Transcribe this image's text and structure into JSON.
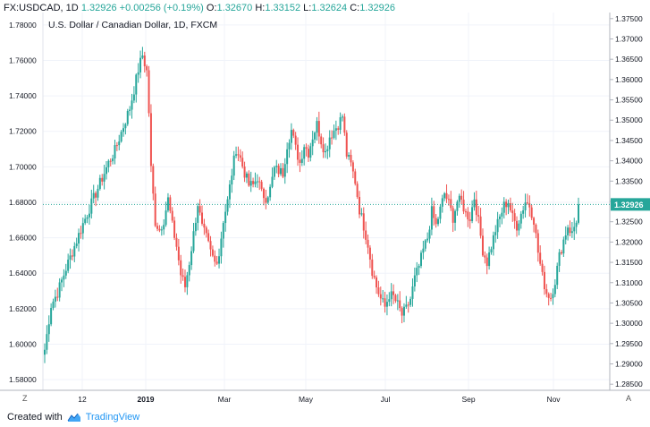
{
  "header": {
    "symbol": "FX:USDCAD, 1D",
    "last": "1.32926",
    "change": "+0.00256 (+0.19%)",
    "o_label": "O:",
    "o_value": "1.32670",
    "h_label": "H:",
    "h_value": "1.33152",
    "l_label": "L:",
    "l_value": "1.32624",
    "c_label": "C:",
    "c_value": "1.32926"
  },
  "subtitle": "U.S. Dollar / Canadian Dollar, 1D, FXCM",
  "footer": {
    "prefix": "Created with",
    "brand": "TradingView"
  },
  "corners": {
    "left": "Z",
    "right": "A"
  },
  "colors": {
    "up": "#26a69a",
    "down": "#ef5350",
    "grid": "#f0f3fa",
    "price_line": "#26a69a",
    "price_tag": "#26a69a"
  },
  "chart_data": {
    "type": "candlestick",
    "title": "U.S. Dollar / Canadian Dollar, 1D, FXCM",
    "last_price": 1.32926,
    "last_price_label": "1.32926",
    "x_tick_labels": [
      "12",
      "2019",
      "Mar",
      "May",
      "Jul",
      "Sep",
      "Nov"
    ],
    "left_axis": {
      "ticks": [
        1.58,
        1.6,
        1.62,
        1.64,
        1.66,
        1.68,
        1.7,
        1.72,
        1.74,
        1.76,
        1.78
      ],
      "tick_labels": [
        "1.58000",
        "1.60000",
        "1.62000",
        "1.64000",
        "1.66000",
        "1.68000",
        "1.70000",
        "1.72000",
        "1.74000",
        "1.76000",
        "1.78000"
      ],
      "range": [
        1.574,
        1.787
      ]
    },
    "right_axis": {
      "ticks": [
        1.285,
        1.29,
        1.295,
        1.3,
        1.305,
        1.31,
        1.315,
        1.32,
        1.325,
        1.33,
        1.335,
        1.34,
        1.345,
        1.35,
        1.355,
        1.36,
        1.365,
        1.37,
        1.375
      ],
      "tick_labels": [
        "1.28500",
        "1.29000",
        "1.29500",
        "1.30000",
        "1.30500",
        "1.31000",
        "1.31500",
        "1.32000",
        "1.32500",
        "1.33000",
        "1.33500",
        "1.34000",
        "1.34500",
        "1.35000",
        "1.35500",
        "1.36000",
        "1.36500",
        "1.37000",
        "1.37500"
      ],
      "range": [
        1.2835,
        1.3765
      ]
    },
    "price_anchors": [
      [
        0,
        1.2935
      ],
      [
        3,
        1.3045
      ],
      [
        6,
        1.3075
      ],
      [
        10,
        1.3135
      ],
      [
        14,
        1.319
      ],
      [
        18,
        1.3245
      ],
      [
        22,
        1.3295
      ],
      [
        26,
        1.3345
      ],
      [
        30,
        1.3395
      ],
      [
        33,
        1.3425
      ],
      [
        36,
        1.347
      ],
      [
        40,
        1.353
      ],
      [
        42,
        1.3575
      ],
      [
        44,
        1.3625
      ],
      [
        46,
        1.366
      ],
      [
        48,
        1.362
      ],
      [
        49,
        1.352
      ],
      [
        50,
        1.338
      ],
      [
        52,
        1.325
      ],
      [
        54,
        1.323
      ],
      [
        56,
        1.3255
      ],
      [
        58,
        1.3305
      ],
      [
        60,
        1.324
      ],
      [
        62,
        1.319
      ],
      [
        64,
        1.312
      ],
      [
        66,
        1.309
      ],
      [
        68,
        1.315
      ],
      [
        70,
        1.322
      ],
      [
        72,
        1.3295
      ],
      [
        74,
        1.3235
      ],
      [
        76,
        1.321
      ],
      [
        78,
        1.3175
      ],
      [
        80,
        1.315
      ],
      [
        82,
        1.317
      ],
      [
        84,
        1.3255
      ],
      [
        86,
        1.33
      ],
      [
        88,
        1.337
      ],
      [
        90,
        1.343
      ],
      [
        92,
        1.3405
      ],
      [
        94,
        1.337
      ],
      [
        96,
        1.334
      ],
      [
        98,
        1.334
      ],
      [
        100,
        1.336
      ],
      [
        102,
        1.332
      ],
      [
        104,
        1.331
      ],
      [
        106,
        1.333
      ],
      [
        108,
        1.338
      ],
      [
        112,
        1.337
      ],
      [
        114,
        1.344
      ],
      [
        116,
        1.3475
      ],
      [
        118,
        1.343
      ],
      [
        120,
        1.3395
      ],
      [
        122,
        1.344
      ],
      [
        124,
        1.342
      ],
      [
        126,
        1.346
      ],
      [
        128,
        1.349
      ],
      [
        130,
        1.345
      ],
      [
        132,
        1.342
      ],
      [
        134,
        1.346
      ],
      [
        136,
        1.3475
      ],
      [
        138,
        1.349
      ],
      [
        140,
        1.351
      ],
      [
        142,
        1.3415
      ],
      [
        144,
        1.339
      ],
      [
        146,
        1.335
      ],
      [
        148,
        1.328
      ],
      [
        150,
        1.324
      ],
      [
        152,
        1.3195
      ],
      [
        154,
        1.313
      ],
      [
        156,
        1.309
      ],
      [
        158,
        1.306
      ],
      [
        160,
        1.304
      ],
      [
        162,
        1.307
      ],
      [
        164,
        1.3065
      ],
      [
        166,
        1.3045
      ],
      [
        168,
        1.302
      ],
      [
        170,
        1.3035
      ],
      [
        172,
        1.306
      ],
      [
        174,
        1.311
      ],
      [
        176,
        1.314
      ],
      [
        178,
        1.318
      ],
      [
        180,
        1.321
      ],
      [
        182,
        1.3275
      ],
      [
        184,
        1.324
      ],
      [
        186,
        1.328
      ],
      [
        188,
        1.332
      ],
      [
        190,
        1.3295
      ],
      [
        192,
        1.326
      ],
      [
        194,
        1.33
      ],
      [
        196,
        1.33
      ],
      [
        198,
        1.327
      ],
      [
        200,
        1.326
      ],
      [
        202,
        1.331
      ],
      [
        204,
        1.325
      ],
      [
        206,
        1.318
      ],
      [
        208,
        1.315
      ],
      [
        210,
        1.319
      ],
      [
        212,
        1.323
      ],
      [
        214,
        1.326
      ],
      [
        216,
        1.329
      ],
      [
        218,
        1.33
      ],
      [
        220,
        1.326
      ],
      [
        222,
        1.324
      ],
      [
        224,
        1.327
      ],
      [
        226,
        1.33
      ],
      [
        228,
        1.329
      ],
      [
        230,
        1.3255
      ],
      [
        232,
        1.3175
      ],
      [
        234,
        1.3115
      ],
      [
        236,
        1.3075
      ],
      [
        238,
        1.3065
      ],
      [
        240,
        1.3105
      ],
      [
        242,
        1.3165
      ],
      [
        244,
        1.3205
      ],
      [
        246,
        1.324
      ],
      [
        248,
        1.322
      ],
      [
        250,
        1.3255
      ],
      [
        251,
        1.3293
      ]
    ]
  }
}
